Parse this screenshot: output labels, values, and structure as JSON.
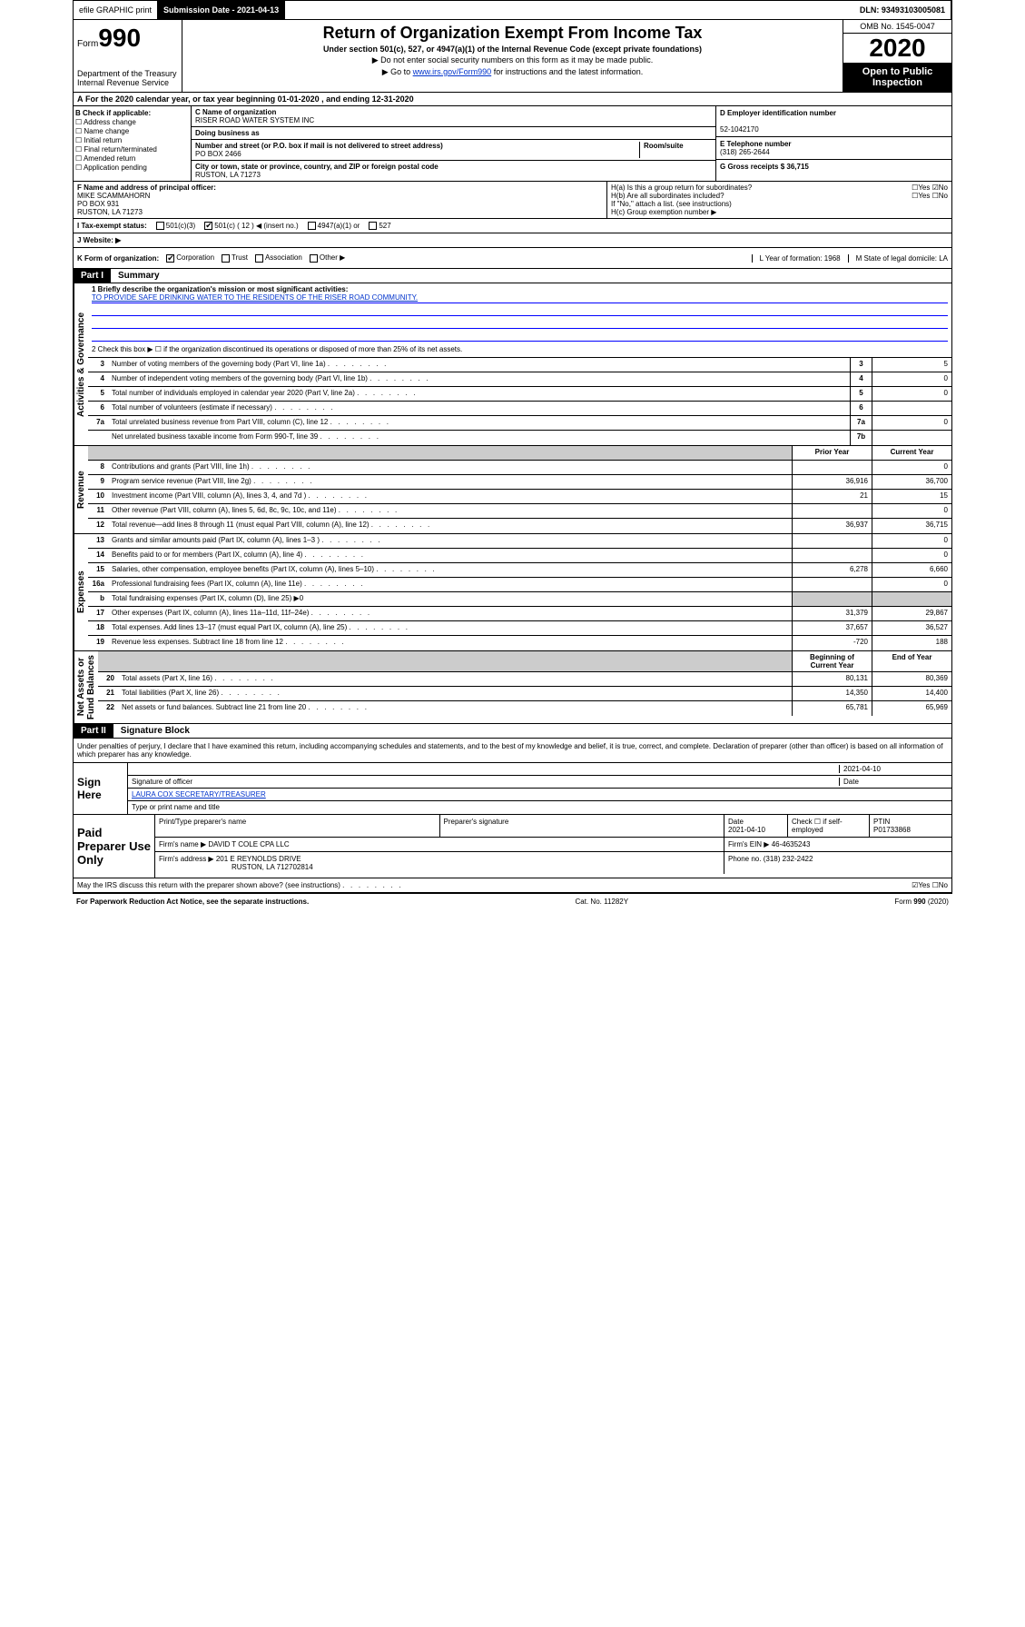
{
  "topbar": {
    "efile": "efile GRAPHIC print",
    "subdate_lbl": "Submission Date - 2021-04-13",
    "dln": "DLN: 93493103005081"
  },
  "header": {
    "form": "Form",
    "num": "990",
    "title": "Return of Organization Exempt From Income Tax",
    "sub1": "Under section 501(c), 527, or 4947(a)(1) of the Internal Revenue Code (except private foundations)",
    "sub2": "▶ Do not enter social security numbers on this form as it may be made public.",
    "sub3": "▶ Go to www.irs.gov/Form990 for instructions and the latest information.",
    "dept": "Department of the Treasury\nInternal Revenue Service",
    "omb": "OMB No. 1545-0047",
    "year": "2020",
    "open": "Open to Public Inspection"
  },
  "A": {
    "text": "For the 2020 calendar year, or tax year beginning 01-01-2020   , and ending 12-31-2020"
  },
  "B": {
    "hdr": "B Check if applicable:",
    "items": [
      "☐ Address change",
      "☐ Name change",
      "☐ Initial return",
      "☐ Final return/terminated",
      "☐ Amended return",
      "☐ Application pending"
    ]
  },
  "C": {
    "name_lbl": "C Name of organization",
    "name": "RISER ROAD WATER SYSTEM INC",
    "dba_lbl": "Doing business as",
    "addr_lbl": "Number and street (or P.O. box if mail is not delivered to street address)",
    "room_lbl": "Room/suite",
    "addr": "PO BOX 2466",
    "city_lbl": "City or town, state or province, country, and ZIP or foreign postal code",
    "city": "RUSTON, LA  71273"
  },
  "D": {
    "lbl": "D Employer identification number",
    "val": "52-1042170"
  },
  "E": {
    "lbl": "E Telephone number",
    "val": "(318) 265-2644"
  },
  "G": {
    "lbl": "G Gross receipts $ 36,715"
  },
  "F": {
    "lbl": "F  Name and address of principal officer:",
    "name": "MIKE SCAMMAHORN",
    "addr": "PO BOX 931",
    "city": "RUSTON, LA  71273"
  },
  "H": {
    "a": "H(a)  Is this a group return for subordinates?",
    "a_ans": "☐Yes ☑No",
    "b": "H(b)  Are all subordinates included?",
    "b_ans": "☐Yes ☐No",
    "b_note": "If \"No,\" attach a list. (see instructions)",
    "c": "H(c)  Group exemption number ▶"
  },
  "I": {
    "lbl": "I   Tax-exempt status:",
    "opts": [
      "501(c)(3)",
      "501(c) ( 12 ) ◀ (insert no.)",
      "4947(a)(1) or",
      "527"
    ],
    "checked": 1
  },
  "J": {
    "lbl": "J   Website: ▶"
  },
  "K": {
    "lbl": "K Form of organization:",
    "opts": [
      "Corporation",
      "Trust",
      "Association",
      "Other ▶"
    ],
    "checked": 0,
    "L": "L Year of formation: 1968",
    "M": "M State of legal domicile: LA"
  },
  "partI": {
    "hdr": "Part I",
    "title": "Summary"
  },
  "summary": {
    "q1": "1   Briefly describe the organization's mission or most significant activities:",
    "mission": "TO PROVIDE SAFE DRINKING WATER TO THE RESIDENTS OF THE RISER ROAD COMMUNITY.",
    "q2": "2   Check this box ▶ ☐  if the organization discontinued its operations or disposed of more than 25% of its net assets.",
    "rows": [
      {
        "n": "3",
        "d": "Number of voting members of the governing body (Part VI, line 1a)",
        "box": "3",
        "v": "5"
      },
      {
        "n": "4",
        "d": "Number of independent voting members of the governing body (Part VI, line 1b)",
        "box": "4",
        "v": "0"
      },
      {
        "n": "5",
        "d": "Total number of individuals employed in calendar year 2020 (Part V, line 2a)",
        "box": "5",
        "v": "0"
      },
      {
        "n": "6",
        "d": "Total number of volunteers (estimate if necessary)",
        "box": "6",
        "v": ""
      },
      {
        "n": "7a",
        "d": "Total unrelated business revenue from Part VIII, column (C), line 12",
        "box": "7a",
        "v": "0"
      },
      {
        "n": " ",
        "d": "Net unrelated business taxable income from Form 990-T, line 39",
        "box": "7b",
        "v": ""
      }
    ]
  },
  "cols": {
    "prior": "Prior Year",
    "curr": "Current Year",
    "beg": "Beginning of Current Year",
    "end": "End of Year"
  },
  "revenue": [
    {
      "n": "8",
      "d": "Contributions and grants (Part VIII, line 1h)",
      "p": "",
      "c": "0"
    },
    {
      "n": "9",
      "d": "Program service revenue (Part VIII, line 2g)",
      "p": "36,916",
      "c": "36,700"
    },
    {
      "n": "10",
      "d": "Investment income (Part VIII, column (A), lines 3, 4, and 7d )",
      "p": "21",
      "c": "15"
    },
    {
      "n": "11",
      "d": "Other revenue (Part VIII, column (A), lines 5, 6d, 8c, 9c, 10c, and 11e)",
      "p": "",
      "c": "0"
    },
    {
      "n": "12",
      "d": "Total revenue—add lines 8 through 11 (must equal Part VIII, column (A), line 12)",
      "p": "36,937",
      "c": "36,715"
    }
  ],
  "expenses": [
    {
      "n": "13",
      "d": "Grants and similar amounts paid (Part IX, column (A), lines 1–3 )",
      "p": "",
      "c": "0"
    },
    {
      "n": "14",
      "d": "Benefits paid to or for members (Part IX, column (A), line 4)",
      "p": "",
      "c": "0"
    },
    {
      "n": "15",
      "d": "Salaries, other compensation, employee benefits (Part IX, column (A), lines 5–10)",
      "p": "6,278",
      "c": "6,660"
    },
    {
      "n": "16a",
      "d": "Professional fundraising fees (Part IX, column (A), line 11e)",
      "p": "",
      "c": "0"
    },
    {
      "n": "b",
      "d": "Total fundraising expenses (Part IX, column (D), line 25) ▶0",
      "p": "grey",
      "c": "grey"
    },
    {
      "n": "17",
      "d": "Other expenses (Part IX, column (A), lines 11a–11d, 11f–24e)",
      "p": "31,379",
      "c": "29,867"
    },
    {
      "n": "18",
      "d": "Total expenses. Add lines 13–17 (must equal Part IX, column (A), line 25)",
      "p": "37,657",
      "c": "36,527"
    },
    {
      "n": "19",
      "d": "Revenue less expenses. Subtract line 18 from line 12",
      "p": "-720",
      "c": "188"
    }
  ],
  "netassets": [
    {
      "n": "20",
      "d": "Total assets (Part X, line 16)",
      "p": "80,131",
      "c": "80,369"
    },
    {
      "n": "21",
      "d": "Total liabilities (Part X, line 26)",
      "p": "14,350",
      "c": "14,400"
    },
    {
      "n": "22",
      "d": "Net assets or fund balances. Subtract line 21 from line 20",
      "p": "65,781",
      "c": "65,969"
    }
  ],
  "sidelabels": {
    "ag": "Activities & Governance",
    "rev": "Revenue",
    "exp": "Expenses",
    "na": "Net Assets or\nFund Balances"
  },
  "partII": {
    "hdr": "Part II",
    "title": "Signature Block"
  },
  "sig": {
    "decl": "Under penalties of perjury, I declare that I have examined this return, including accompanying schedules and statements, and to the best of my knowledge and belief, it is true, correct, and complete. Declaration of preparer (other than officer) is based on all information of which preparer has any knowledge.",
    "here": "Sign Here",
    "date": "2021-04-10",
    "sig_lbl": "Signature of officer",
    "date_lbl": "Date",
    "name": "LAURA COX  SECRETARY/TREASURER",
    "name_lbl": "Type or print name and title"
  },
  "prep": {
    "lbl": "Paid Preparer Use Only",
    "h": [
      "Print/Type preparer's name",
      "Preparer's signature",
      "Date",
      "",
      "PTIN"
    ],
    "r1": [
      "",
      "",
      "2021-04-10",
      "Check ☐ if self-employed",
      "P01733868"
    ],
    "firm_lbl": "Firm's name    ▶",
    "firm": "DAVID T COLE CPA LLC",
    "ein_lbl": "Firm's EIN ▶",
    "ein": "46-4635243",
    "addr_lbl": "Firm's address ▶",
    "addr": "201 E REYNOLDS DRIVE",
    "addr2": "RUSTON, LA  712702814",
    "phone_lbl": "Phone no.",
    "phone": "(318) 232-2422"
  },
  "discuss": {
    "q": "May the IRS discuss this return with the preparer shown above? (see instructions)",
    "ans": "☑Yes  ☐No"
  },
  "footer": {
    "l": "For Paperwork Reduction Act Notice, see the separate instructions.",
    "c": "Cat. No. 11282Y",
    "r": "Form 990 (2020)"
  }
}
